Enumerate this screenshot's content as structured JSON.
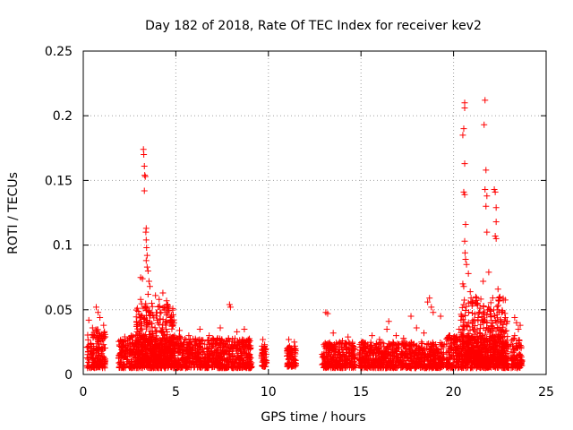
{
  "chart_data": {
    "type": "scatter",
    "title": "Day 182 of 2018, Rate Of TEC Index for receiver kev2",
    "xlabel": "GPS time / hours",
    "ylabel": "ROTI / TECUs",
    "xlim": [
      0,
      25
    ],
    "ylim": [
      0,
      0.25
    ],
    "xticks": [
      0,
      5,
      10,
      15,
      20,
      25
    ],
    "xtick_labels": [
      "0",
      "5",
      "10",
      "15",
      "20",
      "25"
    ],
    "yticks": [
      0,
      0.05,
      0.1,
      0.15,
      0.2,
      0.25
    ],
    "ytick_labels": [
      "0",
      "0.05",
      "0.1",
      "0.15",
      "0.2",
      "0.25"
    ],
    "grid": true,
    "marker": "+",
    "color": "#ff0000",
    "series": [
      {
        "name": "ROTI",
        "points": [
          [
            0.3,
            0.042
          ],
          [
            0.5,
            0.036
          ],
          [
            0.7,
            0.052
          ],
          [
            0.8,
            0.048
          ],
          [
            0.9,
            0.044
          ],
          [
            1.1,
            0.038
          ],
          [
            0.6,
            0.03
          ],
          [
            1.0,
            0.028
          ],
          [
            2.2,
            0.025
          ],
          [
            2.6,
            0.03
          ],
          [
            2.9,
            0.033
          ],
          [
            3.0,
            0.04
          ],
          [
            3.1,
            0.058
          ],
          [
            3.1,
            0.075
          ],
          [
            3.2,
            0.074
          ],
          [
            3.25,
            0.174
          ],
          [
            3.27,
            0.17
          ],
          [
            3.3,
            0.161
          ],
          [
            3.32,
            0.154
          ],
          [
            3.35,
            0.153
          ],
          [
            3.3,
            0.142
          ],
          [
            3.4,
            0.113
          ],
          [
            3.38,
            0.11
          ],
          [
            3.4,
            0.104
          ],
          [
            3.42,
            0.098
          ],
          [
            3.45,
            0.092
          ],
          [
            3.4,
            0.088
          ],
          [
            3.45,
            0.083
          ],
          [
            3.5,
            0.08
          ],
          [
            3.55,
            0.072
          ],
          [
            3.6,
            0.068
          ],
          [
            3.5,
            0.062
          ],
          [
            3.7,
            0.055
          ],
          [
            3.9,
            0.061
          ],
          [
            4.1,
            0.058
          ],
          [
            4.3,
            0.063
          ],
          [
            4.5,
            0.057
          ],
          [
            4.6,
            0.052
          ],
          [
            4.2,
            0.048
          ],
          [
            4.7,
            0.044
          ],
          [
            4.0,
            0.042
          ],
          [
            4.9,
            0.04
          ],
          [
            5.2,
            0.034
          ],
          [
            5.7,
            0.03
          ],
          [
            6.3,
            0.035
          ],
          [
            6.8,
            0.03
          ],
          [
            7.4,
            0.036
          ],
          [
            7.9,
            0.054
          ],
          [
            7.95,
            0.052
          ],
          [
            8.3,
            0.033
          ],
          [
            8.7,
            0.035
          ],
          [
            9.0,
            0.026
          ],
          [
            9.7,
            0.027
          ],
          [
            9.8,
            0.023
          ],
          [
            11.1,
            0.027
          ],
          [
            11.4,
            0.025
          ],
          [
            11.2,
            0.02
          ],
          [
            13.1,
            0.048
          ],
          [
            13.2,
            0.047
          ],
          [
            13.5,
            0.032
          ],
          [
            14.0,
            0.026
          ],
          [
            14.3,
            0.029
          ],
          [
            15.1,
            0.025
          ],
          [
            15.6,
            0.03
          ],
          [
            16.0,
            0.027
          ],
          [
            16.4,
            0.035
          ],
          [
            16.5,
            0.041
          ],
          [
            16.9,
            0.03
          ],
          [
            17.3,
            0.028
          ],
          [
            17.7,
            0.045
          ],
          [
            18.0,
            0.036
          ],
          [
            18.4,
            0.032
          ],
          [
            18.6,
            0.056
          ],
          [
            18.7,
            0.059
          ],
          [
            18.8,
            0.052
          ],
          [
            18.9,
            0.048
          ],
          [
            19.3,
            0.045
          ],
          [
            19.8,
            0.03
          ],
          [
            20.3,
            0.035
          ],
          [
            20.4,
            0.042
          ],
          [
            20.5,
            0.07
          ],
          [
            20.55,
            0.068
          ],
          [
            20.6,
            0.21
          ],
          [
            20.6,
            0.206
          ],
          [
            20.55,
            0.19
          ],
          [
            20.5,
            0.185
          ],
          [
            20.6,
            0.163
          ],
          [
            20.55,
            0.141
          ],
          [
            20.6,
            0.139
          ],
          [
            20.65,
            0.116
          ],
          [
            20.6,
            0.103
          ],
          [
            20.62,
            0.094
          ],
          [
            20.65,
            0.089
          ],
          [
            20.7,
            0.085
          ],
          [
            20.8,
            0.078
          ],
          [
            20.9,
            0.064
          ],
          [
            21.0,
            0.053
          ],
          [
            21.2,
            0.06
          ],
          [
            21.3,
            0.055
          ],
          [
            21.7,
            0.212
          ],
          [
            21.65,
            0.193
          ],
          [
            21.75,
            0.158
          ],
          [
            21.7,
            0.143
          ],
          [
            21.8,
            0.138
          ],
          [
            21.75,
            0.13
          ],
          [
            21.8,
            0.11
          ],
          [
            21.9,
            0.079
          ],
          [
            21.6,
            0.072
          ],
          [
            22.2,
            0.143
          ],
          [
            22.25,
            0.141
          ],
          [
            22.3,
            0.129
          ],
          [
            22.3,
            0.118
          ],
          [
            22.25,
            0.107
          ],
          [
            22.3,
            0.105
          ],
          [
            22.4,
            0.066
          ],
          [
            22.5,
            0.06
          ],
          [
            22.6,
            0.048
          ],
          [
            22.8,
            0.044
          ],
          [
            22.9,
            0.041
          ],
          [
            23.3,
            0.044
          ],
          [
            23.4,
            0.04
          ],
          [
            23.6,
            0.038
          ],
          [
            23.5,
            0.035
          ],
          [
            23.3,
            0.03
          ]
        ],
        "dense_bands": [
          {
            "x": [
              0.2,
              1.2
            ],
            "y": [
              0.005,
              0.035
            ]
          },
          {
            "x": [
              1.9,
              5.3
            ],
            "y": [
              0.005,
              0.03
            ]
          },
          {
            "x": [
              2.8,
              4.9
            ],
            "y": [
              0.01,
              0.055
            ]
          },
          {
            "x": [
              5.3,
              9.1
            ],
            "y": [
              0.005,
              0.028
            ]
          },
          {
            "x": [
              9.6,
              9.9
            ],
            "y": [
              0.006,
              0.022
            ]
          },
          {
            "x": [
              11.0,
              11.5
            ],
            "y": [
              0.006,
              0.022
            ]
          },
          {
            "x": [
              12.9,
              14.7
            ],
            "y": [
              0.005,
              0.025
            ]
          },
          {
            "x": [
              14.9,
              19.5
            ],
            "y": [
              0.005,
              0.025
            ]
          },
          {
            "x": [
              19.6,
              23.0
            ],
            "y": [
              0.005,
              0.03
            ]
          },
          {
            "x": [
              20.4,
              22.9
            ],
            "y": [
              0.01,
              0.06
            ]
          },
          {
            "x": [
              23.1,
              23.7
            ],
            "y": [
              0.005,
              0.028
            ]
          }
        ]
      }
    ]
  }
}
